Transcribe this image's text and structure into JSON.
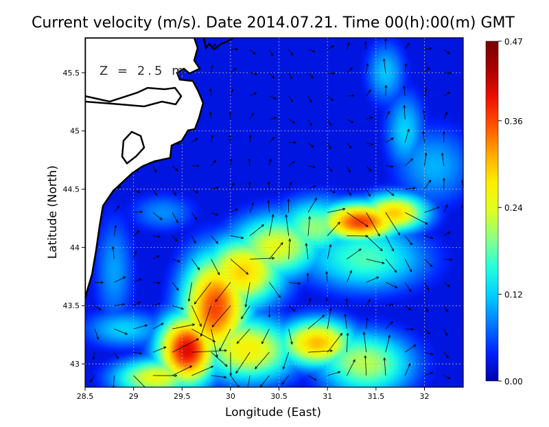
{
  "chart_data": {
    "type": "heatmap",
    "title": "Current velocity (m/s). Date 2014.07.21. Time 00(h):00(m) GMT",
    "xlabel": "Longitude (East)",
    "ylabel": "Latitude (North)",
    "annotation": "Z = 2.5 m",
    "xlim": [
      28.5,
      32.4
    ],
    "ylim": [
      42.8,
      45.8
    ],
    "x_ticks": [
      "28.5",
      "29",
      "29.5",
      "30",
      "30.5",
      "31",
      "31.5",
      "32"
    ],
    "x_tick_values": [
      28.5,
      29,
      29.5,
      30,
      30.5,
      31,
      31.5,
      32
    ],
    "y_ticks": [
      "43",
      "43.5",
      "44",
      "44.5",
      "45",
      "45.5"
    ],
    "y_tick_values": [
      43,
      43.5,
      44,
      44.5,
      45,
      45.5
    ],
    "grid": true,
    "colorbar": {
      "min": 0.0,
      "max": 0.47,
      "tick_labels": [
        "0.00",
        "0.12",
        "0.24",
        "0.36",
        "0.47"
      ],
      "tick_values": [
        0.0,
        0.12,
        0.24,
        0.36,
        0.47
      ],
      "colormap": [
        "#0000aa",
        "#0022ff",
        "#0077ff",
        "#00ccff",
        "#22ffdd",
        "#88ff88",
        "#ddff22",
        "#ffee00",
        "#ffaa00",
        "#ff5500",
        "#ee1100",
        "#aa0000",
        "#770000"
      ]
    },
    "field_features": [
      {
        "lon": 29.55,
        "lat": 43.12,
        "speed": 0.47,
        "sx": 0.22,
        "sy": 0.22
      },
      {
        "lon": 29.85,
        "lat": 43.5,
        "speed": 0.42,
        "sx": 0.25,
        "sy": 0.32
      },
      {
        "lon": 30.15,
        "lat": 43.8,
        "speed": 0.32,
        "sx": 0.3,
        "sy": 0.22
      },
      {
        "lon": 30.5,
        "lat": 44.02,
        "speed": 0.27,
        "sx": 0.35,
        "sy": 0.2
      },
      {
        "lon": 30.9,
        "lat": 44.18,
        "speed": 0.22,
        "sx": 0.3,
        "sy": 0.18
      },
      {
        "lon": 31.35,
        "lat": 44.22,
        "speed": 0.42,
        "sx": 0.3,
        "sy": 0.12
      },
      {
        "lon": 31.7,
        "lat": 44.3,
        "speed": 0.32,
        "sx": 0.25,
        "sy": 0.12
      },
      {
        "lon": 31.4,
        "lat": 43.9,
        "speed": 0.2,
        "sx": 0.45,
        "sy": 0.2
      },
      {
        "lon": 30.2,
        "lat": 43.12,
        "speed": 0.3,
        "sx": 0.35,
        "sy": 0.2
      },
      {
        "lon": 30.9,
        "lat": 43.18,
        "speed": 0.35,
        "sx": 0.28,
        "sy": 0.15
      },
      {
        "lon": 31.4,
        "lat": 43.0,
        "speed": 0.25,
        "sx": 0.35,
        "sy": 0.2
      },
      {
        "lon": 29.2,
        "lat": 42.88,
        "speed": 0.28,
        "sx": 0.3,
        "sy": 0.12
      },
      {
        "lon": 28.9,
        "lat": 43.3,
        "speed": 0.14,
        "sx": 0.3,
        "sy": 0.12
      },
      {
        "lon": 31.8,
        "lat": 45.0,
        "speed": 0.14,
        "sx": 0.15,
        "sy": 0.25
      },
      {
        "lon": 31.6,
        "lat": 45.5,
        "speed": 0.13,
        "sx": 0.15,
        "sy": 0.2
      },
      {
        "lon": 32.1,
        "lat": 44.7,
        "speed": 0.12,
        "sx": 0.3,
        "sy": 0.25
      },
      {
        "lon": 29.3,
        "lat": 44.3,
        "speed": 0.1,
        "sx": 0.25,
        "sy": 0.12
      },
      {
        "lon": 28.8,
        "lat": 43.8,
        "speed": 0.11,
        "sx": 0.15,
        "sy": 0.35
      }
    ],
    "vectors_sample": [
      {
        "lon": 29.6,
        "lat": 43.1,
        "u": 0.25,
        "v": 0.35
      },
      {
        "lon": 29.9,
        "lat": 43.5,
        "u": 0.28,
        "v": 0.32
      },
      {
        "lon": 30.2,
        "lat": 43.85,
        "u": 0.25,
        "v": 0.2
      },
      {
        "lon": 31.3,
        "lat": 44.2,
        "u": 0.4,
        "v": 0.0
      },
      {
        "lon": 31.6,
        "lat": 44.3,
        "u": 0.25,
        "v": 0.12
      },
      {
        "lon": 30.9,
        "lat": 43.15,
        "u": -0.3,
        "v": -0.1
      },
      {
        "lon": 31.5,
        "lat": 45.1,
        "u": -0.05,
        "v": 0.12
      }
    ]
  }
}
